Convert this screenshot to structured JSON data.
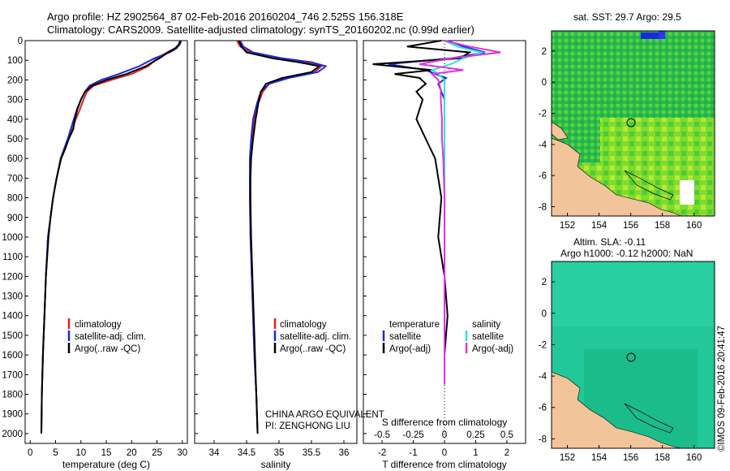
{
  "header": {
    "line1": "Argo profile: HZ 2902564_87 02-Feb-2016 20160204_746 2.525S 156.318E",
    "line2": "Climatology: CARS2009. Satellite-adjusted climatology: synTS_20160202.nc (0.99d earlier)"
  },
  "colors": {
    "climatology": "#e02020",
    "satellite": "#1a2ad8",
    "argo": "#000000",
    "sal_satellite": "#30e0e0",
    "sal_argo": "#e030e0",
    "land": "#f2c49a"
  },
  "depth_ticks": [
    "0",
    "100",
    "200",
    "300",
    "400",
    "500",
    "600",
    "700",
    "800",
    "900",
    "1000",
    "1100",
    "1200",
    "1300",
    "1400",
    "1500",
    "1600",
    "1700",
    "1800",
    "1900",
    "2000"
  ],
  "legend": {
    "climatology": "climatology",
    "satellite": "satellite-adj. clim.",
    "argo": "Argo(..raw -QC)"
  },
  "credit": {
    "line1": "CHINA ARGO EQUIVALENT",
    "line2": "PI: ZENGHONG LIU"
  },
  "diff_legend": {
    "temperature": "temperature",
    "salinity": "salinity",
    "satellite": "satellite",
    "argo": "Argo(-adj)"
  },
  "side": {
    "sst_title": "sat. SST: 29.7 Argo: 29.5",
    "sla_title1": "Altim. SLA: -0.11",
    "sla_title2": "Argo h1000: -0.12 h2000: NaN",
    "watermark": "©IMOS 09-Feb-2016 20:41:47"
  },
  "chart_data": [
    {
      "type": "line",
      "xlabel": "temperature (deg C)",
      "ylabel": "",
      "xlim": [
        -1,
        31
      ],
      "ylim": [
        2050,
        0
      ],
      "xticks": [
        0,
        5,
        10,
        15,
        20,
        25,
        30
      ],
      "xtick_labels": [
        "0",
        "5",
        "10",
        "15",
        "20",
        "25",
        "30"
      ],
      "series": [
        {
          "name": "climatology",
          "x": [
            29.8,
            29.5,
            28.5,
            27,
            25,
            23.3,
            20,
            16,
            12.5,
            11.2,
            10.5,
            9.8,
            9,
            8.2,
            7.5,
            6.8,
            6,
            5.2,
            4.5,
            4,
            3.5,
            3.1,
            2.8,
            2.5,
            2.3,
            2.2
          ],
          "depth": [
            0,
            20,
            40,
            60,
            90,
            130,
            170,
            200,
            230,
            260,
            300,
            350,
            400,
            450,
            500,
            550,
            600,
            700,
            800,
            900,
            1000,
            1200,
            1400,
            1600,
            1800,
            2000
          ]
        },
        {
          "name": "satellite-adj. clim.",
          "x": [
            29.8,
            29.5,
            28.8,
            27.5,
            24.5,
            21.5,
            17.5,
            14,
            11.7,
            10.8,
            10,
            9.2,
            8.6,
            8,
            7.4,
            6.7,
            6,
            5.2,
            4.5,
            4,
            3.5,
            3.1,
            2.8,
            2.5,
            2.3,
            2.2
          ],
          "depth": [
            0,
            20,
            40,
            60,
            90,
            130,
            170,
            200,
            230,
            260,
            300,
            350,
            400,
            450,
            500,
            550,
            600,
            700,
            800,
            900,
            1000,
            1200,
            1400,
            1600,
            1800,
            2000
          ]
        },
        {
          "name": "Argo(..raw -QC)",
          "x": [
            29.6,
            29.3,
            28.6,
            27.2,
            25.5,
            22.8,
            19,
            15,
            12.2,
            10.8,
            10,
            9.3,
            8.8,
            8.5,
            7.6,
            6.9,
            6.1,
            5.2,
            4.5,
            4,
            3.6,
            3.1,
            2.8,
            2.5,
            2.3,
            2.2
          ],
          "depth": [
            0,
            20,
            40,
            60,
            90,
            130,
            170,
            200,
            230,
            260,
            300,
            350,
            400,
            450,
            500,
            550,
            600,
            700,
            800,
            900,
            1000,
            1200,
            1400,
            1600,
            1800,
            2000
          ]
        }
      ]
    },
    {
      "type": "line",
      "xlabel": "salinity",
      "ylabel": "",
      "xlim": [
        33.7,
        36.2
      ],
      "ylim": [
        2050,
        0
      ],
      "xticks": [
        34,
        34.5,
        35,
        35.5,
        36
      ],
      "xtick_labels": [
        "34",
        "34.5",
        "35",
        "35.5",
        "36"
      ],
      "series": [
        {
          "name": "climatology",
          "x": [
            34.35,
            34.4,
            34.55,
            34.95,
            35.4,
            35.65,
            35.55,
            35.1,
            34.85,
            34.75,
            34.68,
            34.62,
            34.58,
            34.56,
            34.55,
            34.55,
            34.56,
            34.58,
            34.6,
            34.62,
            34.65,
            34.67
          ],
          "depth": [
            0,
            30,
            60,
            90,
            110,
            130,
            160,
            190,
            220,
            260,
            320,
            400,
            500,
            600,
            700,
            800,
            1000,
            1200,
            1400,
            1600,
            1800,
            2000
          ]
        },
        {
          "name": "satellite-adj. clim.",
          "x": [
            34.4,
            34.45,
            34.6,
            35.05,
            35.5,
            35.72,
            35.6,
            35.15,
            34.85,
            34.72,
            34.66,
            34.6,
            34.57,
            34.55,
            34.55,
            34.55,
            34.56,
            34.58,
            34.6,
            34.62,
            34.65,
            34.67
          ],
          "depth": [
            0,
            30,
            60,
            90,
            110,
            130,
            160,
            190,
            220,
            260,
            320,
            400,
            500,
            600,
            700,
            800,
            1000,
            1200,
            1400,
            1600,
            1800,
            2000
          ]
        },
        {
          "name": "Argo(..raw -QC)",
          "x": [
            34.38,
            34.42,
            34.5,
            34.9,
            35.3,
            35.62,
            35.5,
            35.05,
            34.8,
            34.72,
            34.68,
            34.64,
            34.6,
            34.57,
            34.56,
            34.56,
            34.57,
            34.59,
            34.61,
            34.63,
            34.65,
            34.67
          ],
          "depth": [
            0,
            30,
            60,
            90,
            110,
            130,
            160,
            190,
            220,
            260,
            320,
            400,
            500,
            600,
            700,
            800,
            1000,
            1200,
            1400,
            1600,
            1800,
            2000
          ]
        }
      ]
    },
    {
      "type": "line",
      "xlabel": "T difference from climatology",
      "x2label": "S difference from climatology",
      "xlim": [
        -2.6,
        2.6
      ],
      "x2lim": [
        -0.65,
        0.65
      ],
      "ylim": [
        2050,
        0
      ],
      "xticks": [
        -2,
        -1,
        0,
        1,
        2
      ],
      "xtick_labels": [
        "-2",
        "-1",
        "0",
        "1",
        "2"
      ],
      "x2ticks": [
        -0.5,
        -0.25,
        0,
        0.25,
        0.5
      ],
      "x2tick_labels": [
        "-0.5",
        "-0.25",
        "0",
        "0.25",
        "0.5"
      ],
      "series": [
        {
          "name": "satellite",
          "group": "temperature",
          "x": [
            0.1,
            0.6,
            1.3,
            0.2,
            -1.8,
            -0.6,
            -0.3,
            0.05,
            -0.2,
            -0.1,
            0,
            0,
            0,
            0,
            0,
            0,
            0,
            0,
            0,
            0,
            0
          ],
          "depth": [
            0,
            30,
            60,
            90,
            120,
            150,
            170,
            190,
            220,
            260,
            300,
            350,
            400,
            500,
            600,
            800,
            1000,
            1200,
            1400,
            1600,
            1750
          ]
        },
        {
          "name": "Argo(-adj)",
          "group": "temperature",
          "x": [
            -0.1,
            -1.2,
            0.8,
            0.5,
            -2.3,
            -0.4,
            -1.6,
            -0.8,
            -0.6,
            -0.9,
            -0.7,
            -0.8,
            -0.9,
            -0.6,
            -0.3,
            -0.1,
            -0.2,
            0,
            0.1,
            0,
            0
          ],
          "depth": [
            0,
            30,
            60,
            90,
            120,
            150,
            170,
            190,
            220,
            260,
            300,
            350,
            400,
            500,
            600,
            800,
            1000,
            1200,
            1400,
            1600,
            1750
          ]
        },
        {
          "name": "satellite",
          "group": "salinity",
          "x": [
            0,
            0.1,
            0.3,
            0.15,
            0.05,
            -0.1,
            -0.05,
            0,
            0,
            0,
            0,
            0,
            0,
            0,
            0,
            0,
            0,
            0,
            0
          ],
          "depth": [
            0,
            30,
            60,
            90,
            120,
            150,
            170,
            200,
            250,
            300,
            400,
            500,
            600,
            800,
            1000,
            1200,
            1400,
            1600,
            1750
          ]
        },
        {
          "name": "Argo(-adj)",
          "group": "salinity",
          "x": [
            0,
            0.2,
            0.45,
            0.05,
            -0.2,
            0.15,
            -0.1,
            -0.05,
            -0.03,
            -0.03,
            -0.02,
            -0.02,
            -0.01,
            0,
            0,
            0,
            0,
            0,
            0
          ],
          "depth": [
            0,
            30,
            60,
            90,
            120,
            150,
            170,
            200,
            250,
            300,
            400,
            500,
            600,
            800,
            1000,
            1200,
            1400,
            1600,
            1750
          ]
        }
      ]
    },
    {
      "type": "heatmap",
      "title": "sat. SST: 29.7 Argo: 29.5",
      "xlim": [
        151,
        161.3
      ],
      "ylim": [
        -8.6,
        3.3
      ],
      "xtick_labels": [
        "152",
        "154",
        "156",
        "158",
        "160"
      ],
      "ytick_labels": [
        "2",
        "0",
        "-2",
        "-4",
        "-6",
        "-8"
      ],
      "argo_position": {
        "lon": 156.318,
        "lat": -2.525
      }
    },
    {
      "type": "heatmap",
      "title": "Altim. SLA: -0.11",
      "xlim": [
        151,
        161.3
      ],
      "ylim": [
        -8.6,
        3.3
      ],
      "xtick_labels": [
        "152",
        "154",
        "156",
        "158",
        "160"
      ],
      "ytick_labels": [
        "2",
        "0",
        "-2",
        "-4",
        "-6",
        "-8"
      ],
      "argo_position": {
        "lon": 156.318,
        "lat": -2.525
      }
    }
  ]
}
